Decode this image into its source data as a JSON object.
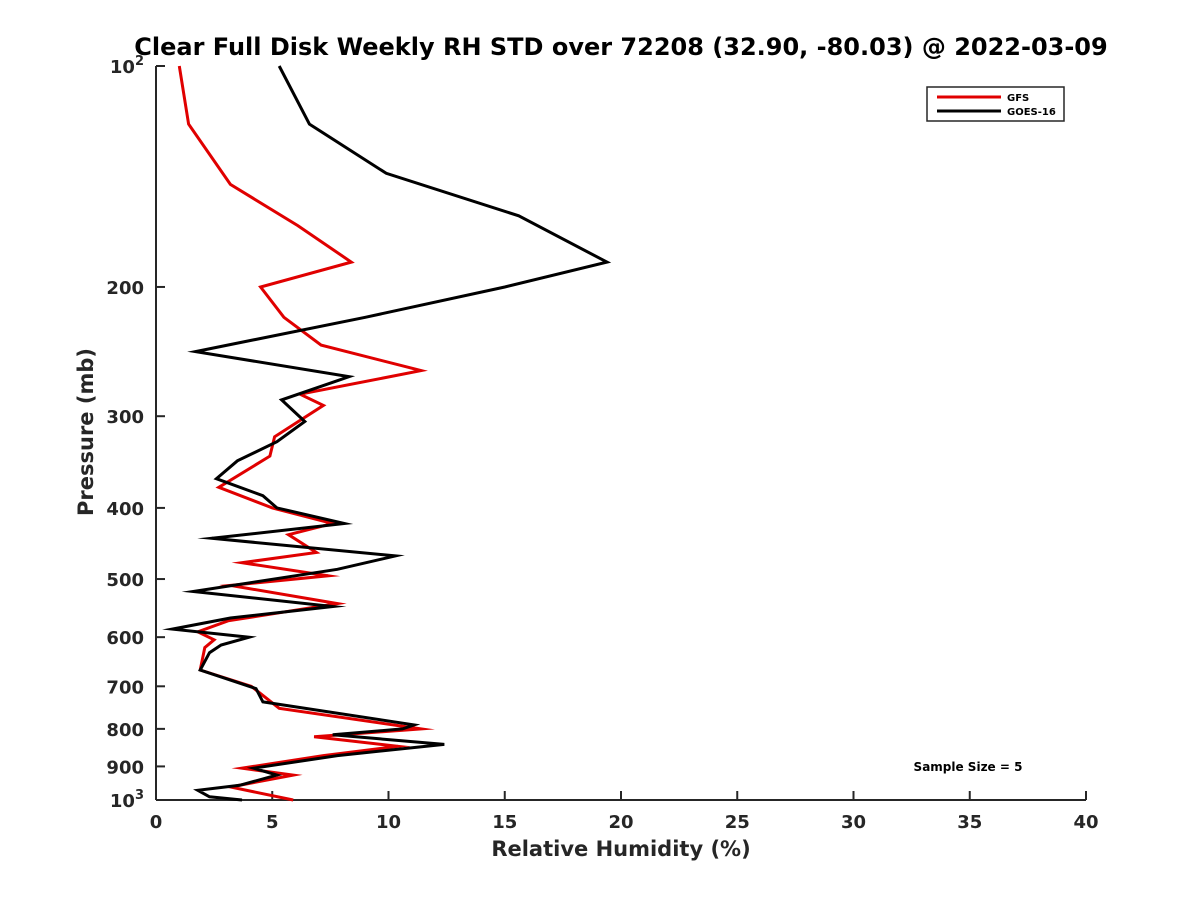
{
  "chart_data": {
    "type": "line",
    "title": "Clear Full Disk Weekly RH STD over 72208 (32.90, -80.03) @ 2022-03-09",
    "xlabel": "Relative Humidity (%)",
    "ylabel": "Pressure (mb)",
    "xlim": [
      0,
      40
    ],
    "ylim": [
      100,
      1000
    ],
    "y_scale": "log",
    "y_reversed": true,
    "x_ticks": [
      "0",
      "5",
      "10",
      "15",
      "20",
      "25",
      "30",
      "35",
      "40"
    ],
    "y_ticks": [
      {
        "value": 100,
        "label": "10",
        "sup": "2"
      },
      {
        "value": 200,
        "label": "200"
      },
      {
        "value": 300,
        "label": "300"
      },
      {
        "value": 400,
        "label": "400"
      },
      {
        "value": 500,
        "label": "500"
      },
      {
        "value": 600,
        "label": "600"
      },
      {
        "value": 700,
        "label": "700"
      },
      {
        "value": 800,
        "label": "800"
      },
      {
        "value": 900,
        "label": "900"
      },
      {
        "value": 1000,
        "label": "10",
        "sup": "3"
      }
    ],
    "legend_position": "top-right",
    "annotation": "Sample Size = 5",
    "series": [
      {
        "name": "GFS",
        "color": "#e00000",
        "points": [
          [
            1.0,
            100
          ],
          [
            1.4,
            120
          ],
          [
            3.2,
            145
          ],
          [
            6.1,
            165
          ],
          [
            8.4,
            185
          ],
          [
            4.5,
            200
          ],
          [
            5.5,
            220
          ],
          [
            7.1,
            240
          ],
          [
            11.4,
            260
          ],
          [
            6.2,
            280
          ],
          [
            7.2,
            290
          ],
          [
            5.1,
            320
          ],
          [
            4.9,
            340
          ],
          [
            2.7,
            375
          ],
          [
            5.0,
            400
          ],
          [
            7.6,
            420
          ],
          [
            5.7,
            435
          ],
          [
            6.9,
            460
          ],
          [
            3.7,
            475
          ],
          [
            7.4,
            495
          ],
          [
            3.2,
            510
          ],
          [
            7.8,
            540
          ],
          [
            3.1,
            570
          ],
          [
            1.8,
            590
          ],
          [
            2.5,
            605
          ],
          [
            2.1,
            620
          ],
          [
            1.9,
            665
          ],
          [
            4.1,
            700
          ],
          [
            5.3,
            750
          ],
          [
            11.4,
            800
          ],
          [
            6.8,
            820
          ],
          [
            10.4,
            845
          ],
          [
            7.2,
            870
          ],
          [
            3.7,
            905
          ],
          [
            5.9,
            925
          ],
          [
            3.2,
            960
          ],
          [
            5.9,
            1000
          ]
        ]
      },
      {
        "name": "GOES-16",
        "color": "#000000",
        "points": [
          [
            5.3,
            100
          ],
          [
            6.6,
            120
          ],
          [
            9.9,
            140
          ],
          [
            15.6,
            160
          ],
          [
            19.4,
            185
          ],
          [
            15.0,
            200
          ],
          [
            9.0,
            220
          ],
          [
            1.7,
            245
          ],
          [
            8.3,
            265
          ],
          [
            5.4,
            285
          ],
          [
            6.4,
            305
          ],
          [
            5.2,
            325
          ],
          [
            3.5,
            345
          ],
          [
            2.6,
            365
          ],
          [
            4.6,
            385
          ],
          [
            5.2,
            400
          ],
          [
            8.1,
            420
          ],
          [
            2.4,
            440
          ],
          [
            10.3,
            465
          ],
          [
            7.8,
            485
          ],
          [
            1.6,
            520
          ],
          [
            7.6,
            545
          ],
          [
            3.2,
            565
          ],
          [
            0.7,
            585
          ],
          [
            4.0,
            600
          ],
          [
            2.8,
            615
          ],
          [
            2.3,
            630
          ],
          [
            1.9,
            665
          ],
          [
            4.3,
            705
          ],
          [
            4.6,
            735
          ],
          [
            11.1,
            790
          ],
          [
            10.6,
            800
          ],
          [
            7.6,
            815
          ],
          [
            12.4,
            840
          ],
          [
            7.8,
            870
          ],
          [
            4.2,
            905
          ],
          [
            5.2,
            925
          ],
          [
            3.6,
            955
          ],
          [
            1.8,
            970
          ],
          [
            2.3,
            990
          ],
          [
            3.7,
            1000
          ]
        ]
      }
    ]
  }
}
